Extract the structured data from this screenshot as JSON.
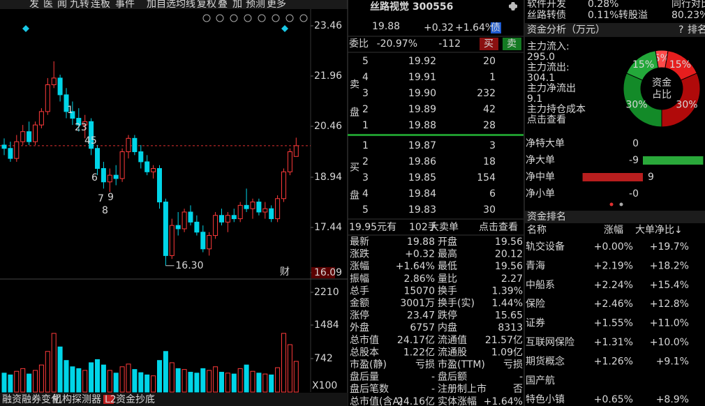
{
  "toolbar": [
    "发",
    "医",
    "闻",
    "九转",
    "连板",
    "事件",
    "加自选",
    "均线",
    "复权",
    "叠",
    "加",
    "预测",
    "更多"
  ],
  "kline": {
    "ylim": [
      15.9,
      24.23
    ],
    "yticks": [
      23.46,
      21.96,
      20.46,
      18.94,
      17.44,
      16.09
    ],
    "candles": [
      [
        19.9,
        20.1,
        19.6,
        19.8
      ],
      [
        19.8,
        20.0,
        19.4,
        19.5
      ],
      [
        19.5,
        20.2,
        19.4,
        20.0
      ],
      [
        20.0,
        20.5,
        19.9,
        20.3
      ],
      [
        20.3,
        20.6,
        19.9,
        20.0
      ],
      [
        20.0,
        20.6,
        19.9,
        20.5
      ],
      [
        20.5,
        21.0,
        20.4,
        20.9
      ],
      [
        20.9,
        21.9,
        20.8,
        21.7
      ],
      [
        21.7,
        22.4,
        21.6,
        21.9
      ],
      [
        21.9,
        22.0,
        21.2,
        21.4
      ],
      [
        21.4,
        21.6,
        20.7,
        20.9
      ],
      [
        20.9,
        21.2,
        20.5,
        20.7
      ],
      [
        20.7,
        21.0,
        20.3,
        20.5
      ],
      [
        20.5,
        20.8,
        20.1,
        20.6
      ],
      [
        20.6,
        20.7,
        19.6,
        19.8
      ],
      [
        19.8,
        19.9,
        19.0,
        19.2
      ],
      [
        19.2,
        19.4,
        18.6,
        18.8
      ],
      [
        18.8,
        19.2,
        18.5,
        19.0
      ],
      [
        19.0,
        19.3,
        18.7,
        18.9
      ],
      [
        18.9,
        19.8,
        18.8,
        19.7
      ],
      [
        19.7,
        20.2,
        19.5,
        20.1
      ],
      [
        20.1,
        20.2,
        19.6,
        19.7
      ],
      [
        19.7,
        19.9,
        19.2,
        19.4
      ],
      [
        19.4,
        19.6,
        19.0,
        19.1
      ],
      [
        19.1,
        19.3,
        18.9,
        19.2
      ],
      [
        19.2,
        19.3,
        18.0,
        18.2
      ],
      [
        18.2,
        18.3,
        16.3,
        16.6
      ],
      [
        16.6,
        17.7,
        16.5,
        17.5
      ],
      [
        17.5,
        17.9,
        17.2,
        17.4
      ],
      [
        17.4,
        18.0,
        17.3,
        17.9
      ],
      [
        17.9,
        18.1,
        17.5,
        17.6
      ],
      [
        17.6,
        17.8,
        17.2,
        17.3
      ],
      [
        17.3,
        17.5,
        16.7,
        16.8
      ],
      [
        16.8,
        17.3,
        16.6,
        17.2
      ],
      [
        17.2,
        17.9,
        17.1,
        17.8
      ],
      [
        17.8,
        18.0,
        17.5,
        17.6
      ],
      [
        17.6,
        17.9,
        17.3,
        17.8
      ],
      [
        17.8,
        18.0,
        17.6,
        17.7
      ],
      [
        17.7,
        18.2,
        17.6,
        18.1
      ],
      [
        18.1,
        18.6,
        17.9,
        18.0
      ],
      [
        18.0,
        18.3,
        17.7,
        18.2
      ],
      [
        18.2,
        18.3,
        17.8,
        17.9
      ],
      [
        17.9,
        18.2,
        17.7,
        18.0
      ],
      [
        18.0,
        18.1,
        17.6,
        17.7
      ],
      [
        17.7,
        18.4,
        17.6,
        18.3
      ],
      [
        18.3,
        19.2,
        18.2,
        19.1
      ],
      [
        19.1,
        19.8,
        19.0,
        19.7
      ],
      [
        19.56,
        20.12,
        19.56,
        19.88
      ]
    ],
    "volumes": [
      420,
      380,
      460,
      520,
      400,
      480,
      600,
      900,
      1300,
      1000,
      700,
      560,
      520,
      480,
      650,
      720,
      600,
      480,
      420,
      560,
      620,
      500,
      430,
      380,
      360,
      700,
      900,
      650,
      520,
      500,
      440,
      420,
      520,
      480,
      560,
      440,
      420,
      400,
      520,
      600,
      460,
      420,
      400,
      380,
      540,
      1300,
      1050,
      680
    ],
    "vol_ylim": [
      0,
      2504
    ],
    "vol_ticks": [
      2210,
      1484,
      742
    ],
    "vol_unit": "X100",
    "low_label": {
      "value": 16.3,
      "label": "16.30"
    },
    "price_line": 19.88,
    "marks": [
      "1",
      "23",
      "45",
      "6",
      "7",
      "8",
      "9"
    ],
    "event": "财"
  },
  "quote": {
    "name": "丝路视觉 300556",
    "price": "19.88",
    "change": "+0.32",
    "pct": "+1.64%",
    "bond": "债",
    "weibi_label": "委比",
    "weibi": "-20.97%",
    "weicha": "-112",
    "buy": "买",
    "sell": "卖",
    "sell_side": "卖盘",
    "buy_side": "买盘",
    "asks": [
      [
        "5",
        "19.92",
        "20"
      ],
      [
        "4",
        "19.91",
        "1"
      ],
      [
        "3",
        "19.90",
        "232"
      ],
      [
        "2",
        "19.89",
        "42"
      ],
      [
        "1",
        "19.88",
        "28"
      ]
    ],
    "bids": [
      [
        "1",
        "19.87",
        "3"
      ],
      [
        "2",
        "19.86",
        "18"
      ],
      [
        "3",
        "19.85",
        "154"
      ],
      [
        "4",
        "19.84",
        "6"
      ],
      [
        "5",
        "19.83",
        "30"
      ]
    ],
    "big_order": [
      "19.95元有",
      "102手",
      "大卖单",
      "点击查看"
    ],
    "stats": [
      [
        "最新",
        "19.88",
        "开盘",
        "19.56"
      ],
      [
        "涨跌",
        "+0.32",
        "最高",
        "20.12"
      ],
      [
        "涨幅",
        "+1.64%",
        "最低",
        "19.56"
      ],
      [
        "振幅",
        "2.86%",
        "量比",
        "2.27"
      ],
      [
        "总手",
        "15070",
        "换手",
        "1.39%"
      ],
      [
        "金额",
        "3001万",
        "换手(实)",
        "1.44%"
      ],
      [
        "涨停",
        "23.47",
        "跌停",
        "15.65"
      ],
      [
        "外盘",
        "6757",
        "内盘",
        "8313"
      ],
      [
        "总市值",
        "24.17亿",
        "流通值",
        "21.57亿"
      ],
      [
        "总股本",
        "1.22亿",
        "流通股",
        "1.09亿"
      ],
      [
        "市盈(静)",
        "亏损",
        "市盈(TTM)",
        "亏损"
      ],
      [
        "盘后量",
        "-",
        "盘后额",
        "-"
      ],
      [
        "盘后笔数",
        "-",
        "注册制上市",
        "否"
      ],
      [
        "总市值(含A)",
        "24.16亿",
        "实体涨幅",
        "+1.64%"
      ]
    ]
  },
  "sector": [
    [
      "软件开发",
      "0.28%",
      "同行对比"
    ],
    [
      "丝路转债",
      "0.11%",
      "转股溢",
      "80.23%"
    ]
  ],
  "fund": {
    "title": "资金分析（万元）",
    "help": "?",
    "rank": "排名",
    "items": [
      "主力流入:",
      "295.0",
      "主力流出:",
      "304.1",
      "主力净流出",
      "9.1",
      "主力持仓成本",
      "点击查看"
    ],
    "donut": {
      "values": [
        5,
        15,
        30,
        30,
        15
      ],
      "labels": [
        "5%",
        "15%",
        "30%",
        "30%",
        "15%"
      ],
      "colors": [
        "#ff4a4a",
        "#e61e1e",
        "#b00a0a",
        "#138a28",
        "#23a83a"
      ],
      "center": [
        "资金",
        "占比"
      ]
    },
    "net": [
      {
        "name": "净特大单",
        "label": "0",
        "value": 0
      },
      {
        "name": "净大单",
        "label": "-9",
        "value": -9
      },
      {
        "name": "净中单",
        "label": "9",
        "value": 9
      },
      {
        "name": "净小单",
        "label": "-0",
        "value": 0
      }
    ]
  },
  "ranking": {
    "title": "资金排名",
    "header": [
      "名称",
      "涨幅",
      "大单净比↓"
    ],
    "rows": [
      [
        "轨交设备",
        "+0.00%",
        "+19.7%"
      ],
      [
        "青海",
        "+2.19%",
        "+18.2%"
      ],
      [
        "中船系",
        "+2.24%",
        "+15.4%"
      ],
      [
        "保险",
        "+2.46%",
        "+12.8%"
      ],
      [
        "证券",
        "+1.55%",
        "+11.0%"
      ],
      [
        "互联网保险",
        "+1.31%",
        "+10.0%"
      ],
      [
        "期货概念",
        "+1.26%",
        "+9.1%"
      ],
      [
        "国产航"
      ],
      [
        "特色小镇",
        "+0.65%",
        "+8.9%"
      ]
    ]
  },
  "tabs": [
    "融资融券变化",
    "机构探测器",
    "L2",
    "资金抄底"
  ]
}
